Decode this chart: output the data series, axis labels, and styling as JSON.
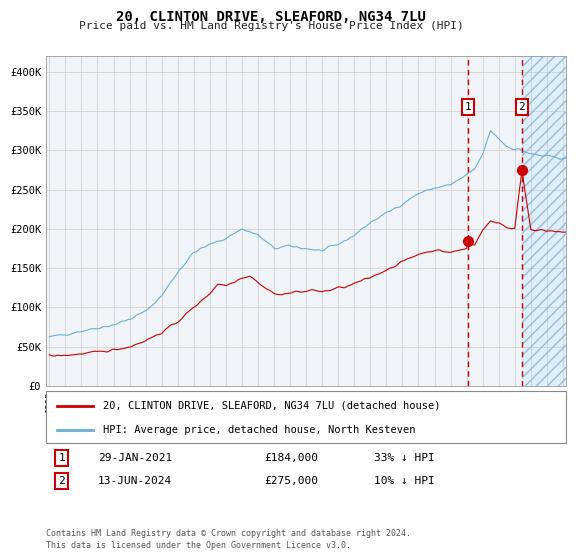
{
  "title": "20, CLINTON DRIVE, SLEAFORD, NG34 7LU",
  "subtitle": "Price paid vs. HM Land Registry's House Price Index (HPI)",
  "legend_line1": "20, CLINTON DRIVE, SLEAFORD, NG34 7LU (detached house)",
  "legend_line2": "HPI: Average price, detached house, North Kesteven",
  "annotation1_date": "29-JAN-2021",
  "annotation1_price": "£184,000",
  "annotation1_hpi": "33% ↓ HPI",
  "annotation2_date": "13-JUN-2024",
  "annotation2_price": "£275,000",
  "annotation2_hpi": "10% ↓ HPI",
  "footer": "Contains HM Land Registry data © Crown copyright and database right 2024.\nThis data is licensed under the Open Government Licence v3.0.",
  "hpi_color": "#6baed6",
  "price_color": "#cc0000",
  "annotation_box_color": "#cc0000",
  "shaded_region_color": "#ddeeff",
  "ylim": [
    0,
    420000
  ],
  "yticks": [
    0,
    50000,
    100000,
    150000,
    200000,
    250000,
    300000,
    350000,
    400000
  ],
  "ytick_labels": [
    "£0",
    "£50K",
    "£100K",
    "£150K",
    "£200K",
    "£250K",
    "£300K",
    "£350K",
    "£400K"
  ],
  "sale1_year": 2021.08,
  "sale1_price": 184000,
  "sale2_year": 2024.45,
  "sale2_price": 275000,
  "xlim_start": 1994.8,
  "xlim_end": 2027.2,
  "future_start": 2024.45,
  "bg_color": "#f0f4f8",
  "grid_color": "#cccccc",
  "xtick_years": [
    1995,
    1996,
    1997,
    1998,
    1999,
    2000,
    2001,
    2002,
    2003,
    2004,
    2005,
    2006,
    2007,
    2008,
    2009,
    2010,
    2011,
    2012,
    2013,
    2014,
    2015,
    2016,
    2017,
    2018,
    2019,
    2020,
    2021,
    2022,
    2023,
    2024,
    2025,
    2026,
    2027
  ]
}
